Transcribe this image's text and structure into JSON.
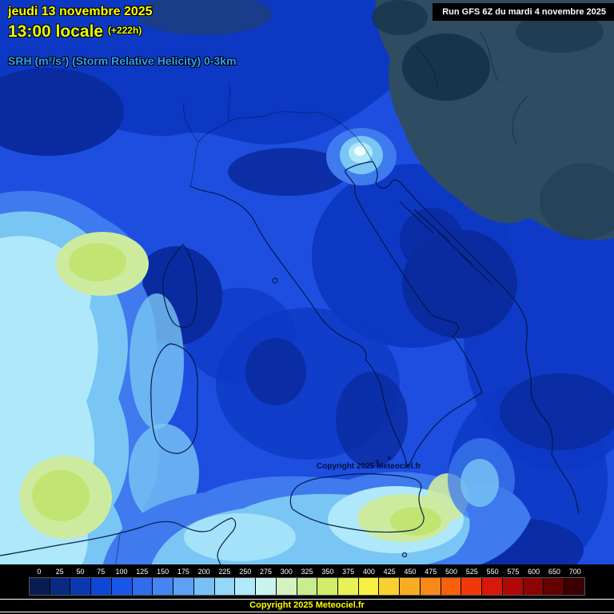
{
  "header": {
    "date": "jeudi 13 novembre 2025",
    "time": "13:00 locale",
    "offset": "(+222h)",
    "run": "Run GFS 6Z du mardi 4 novembre 2025",
    "parameter": "SRH (m²/s²) (Storm Relative Helicity) 0-3km"
  },
  "map": {
    "watermark": "Copyright 2025 Meteociel.fr"
  },
  "legend": {
    "values": [
      "0",
      "25",
      "50",
      "75",
      "100",
      "125",
      "150",
      "175",
      "200",
      "225",
      "250",
      "275",
      "300",
      "325",
      "350",
      "375",
      "400",
      "425",
      "450",
      "475",
      "500",
      "525",
      "550",
      "575",
      "600",
      "650",
      "700"
    ],
    "colors": [
      "#061c52",
      "#082a80",
      "#0a38b0",
      "#0d47d6",
      "#1a57e8",
      "#2f6cee",
      "#4585f2",
      "#5ea1f4",
      "#79c0f6",
      "#93d8f8",
      "#b0e9fa",
      "#c9f3ef",
      "#d2f2c0",
      "#c8ec90",
      "#d0ec6a",
      "#e8f254",
      "#f8f040",
      "#f8d032",
      "#f8ac24",
      "#f88818",
      "#f8600c",
      "#f03808",
      "#d81808",
      "#b00808",
      "#8c0404",
      "#640202",
      "#3c0000"
    ]
  },
  "footer": {
    "copyright": "Copyright 2025 Meteociel.fr"
  },
  "colors": {
    "title_yellow": "#ffff00",
    "time_yellow": "#eaff00",
    "subtitle_blue": "#2da0ff",
    "run_text": "#ffffff",
    "sea_base": "#1e4ee0"
  }
}
